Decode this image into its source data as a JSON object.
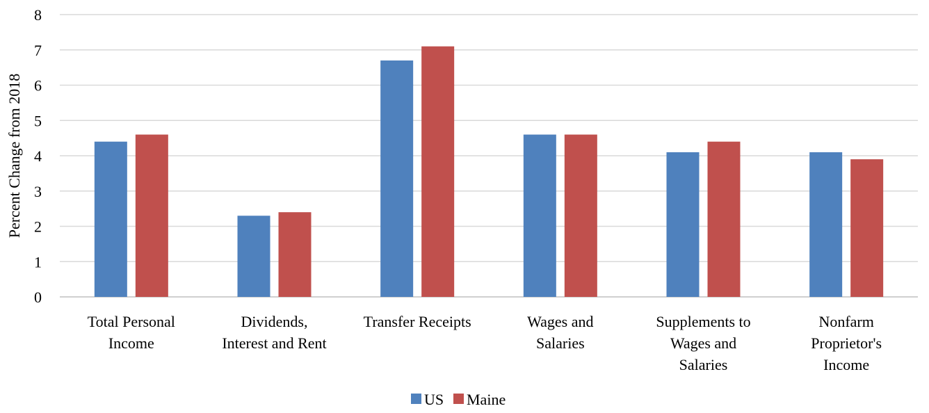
{
  "chart_data": {
    "type": "bar",
    "title": "",
    "xlabel": "",
    "ylabel": "Percent Change from 2018",
    "ylim": [
      0,
      8
    ],
    "yticks": [
      0,
      1,
      2,
      3,
      4,
      5,
      6,
      7,
      8
    ],
    "grid": true,
    "legend_position": "bottom",
    "categories": [
      [
        "Total Personal",
        "Income"
      ],
      [
        "Dividends,",
        "Interest and Rent"
      ],
      [
        "Transfer Receipts"
      ],
      [
        "Wages and",
        "Salaries"
      ],
      [
        "Supplements to",
        "Wages and",
        "Salaries"
      ],
      [
        "Nonfarm",
        "Proprietor's",
        "Income"
      ]
    ],
    "series": [
      {
        "name": "US",
        "color": "#4F81BD",
        "values": [
          4.4,
          2.3,
          6.7,
          4.6,
          4.1,
          4.1
        ]
      },
      {
        "name": "Maine",
        "color": "#C0504D",
        "values": [
          4.6,
          2.4,
          7.1,
          4.6,
          4.4,
          3.9
        ]
      }
    ]
  }
}
